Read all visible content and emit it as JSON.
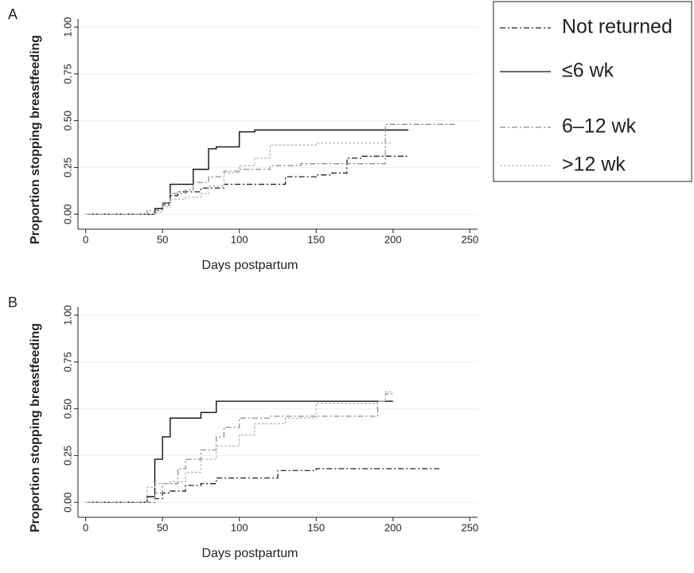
{
  "chart_data": [
    {
      "type": "line",
      "step": true,
      "panel_label": "A",
      "x_label": "Days postpartum",
      "y_label": "Proportion stopping breastfeeding",
      "xlim": [
        -5,
        255
      ],
      "ylim": [
        -0.08,
        1.03
      ],
      "xticks": [
        0,
        50,
        100,
        150,
        200,
        250
      ],
      "yticks": [
        {
          "value": 0,
          "label": "0.00"
        },
        {
          "value": 0.25,
          "label": "0.25"
        },
        {
          "value": 0.5,
          "label": "0.50"
        },
        {
          "value": 0.75,
          "label": "0.75"
        },
        {
          "value": 1,
          "label": "1.00"
        }
      ],
      "grid": true,
      "x": [
        0,
        40,
        45,
        50,
        55,
        60,
        65,
        70,
        75,
        80,
        85,
        90,
        100,
        110,
        120,
        130,
        140,
        150,
        160,
        170,
        180,
        195,
        200,
        210,
        240
      ],
      "series": [
        {
          "name": "Not returned",
          "color": "#222222",
          "dash": "dashdot",
          "values": [
            0,
            0,
            0.02,
            0.05,
            0.1,
            0.12,
            0.12,
            0.12,
            0.14,
            0.14,
            0.14,
            0.16,
            0.16,
            0.16,
            0.16,
            0.2,
            0.2,
            0.21,
            0.22,
            0.3,
            0.31,
            0.31,
            0.31,
            0.31,
            null
          ]
        },
        {
          "name": "≤6 wk",
          "color": "#111111",
          "dash": "solid",
          "values": [
            0,
            0,
            0.03,
            0.06,
            0.16,
            0.16,
            0.16,
            0.24,
            0.24,
            0.35,
            0.36,
            0.36,
            0.44,
            0.45,
            0.45,
            0.45,
            0.45,
            0.45,
            0.45,
            0.45,
            0.45,
            0.45,
            0.45,
            0.45,
            null
          ]
        },
        {
          "name": "6–12 wk",
          "color": "#8c8c8c",
          "dash": "dashdot",
          "values": [
            0,
            0.02,
            0.02,
            0.06,
            0.11,
            0.11,
            0.13,
            0.17,
            0.17,
            0.2,
            0.2,
            0.23,
            0.24,
            0.24,
            0.26,
            0.26,
            0.27,
            0.27,
            0.27,
            0.27,
            0.27,
            0.48,
            0.48,
            0.48,
            0.48
          ]
        },
        {
          "name": ">12 wk",
          "color": "#b8b8b8",
          "dash": "dotted",
          "values": [
            0,
            0,
            0.01,
            0.04,
            0.08,
            0.08,
            0.09,
            0.09,
            0.11,
            0.15,
            0.15,
            0.22,
            0.26,
            0.3,
            0.37,
            0.37,
            0.37,
            0.38,
            0.38,
            0.38,
            0.38,
            0.38,
            0.38,
            null,
            null
          ]
        }
      ]
    },
    {
      "type": "line",
      "step": true,
      "panel_label": "B",
      "x_label": "Days postpartum",
      "y_label": "Proportion stopping breastfeeding",
      "xlim": [
        -5,
        255
      ],
      "ylim": [
        -0.08,
        1.03
      ],
      "xticks": [
        0,
        50,
        100,
        150,
        200,
        250
      ],
      "yticks": [
        {
          "value": 0,
          "label": "0.00"
        },
        {
          "value": 0.25,
          "label": "0.25"
        },
        {
          "value": 0.5,
          "label": "0.50"
        },
        {
          "value": 0.75,
          "label": "0.75"
        },
        {
          "value": 1,
          "label": "1.00"
        }
      ],
      "grid": true,
      "x": [
        0,
        40,
        45,
        50,
        55,
        60,
        65,
        75,
        85,
        90,
        100,
        110,
        120,
        125,
        130,
        150,
        180,
        190,
        195,
        200,
        230
      ],
      "series": [
        {
          "color": "#222222",
          "dash": "dashdot",
          "values": [
            0,
            0,
            0.02,
            0.05,
            0.06,
            0.06,
            0.09,
            0.1,
            0.13,
            0.13,
            0.13,
            0.13,
            0.13,
            0.17,
            0.17,
            0.18,
            0.18,
            0.18,
            0.18,
            0.18,
            0.18
          ]
        },
        {
          "color": "#111111",
          "dash": "solid",
          "values": [
            0,
            0.03,
            0.23,
            0.35,
            0.45,
            0.45,
            0.45,
            0.48,
            0.54,
            0.54,
            0.54,
            0.54,
            0.54,
            0.54,
            0.54,
            0.54,
            0.54,
            0.54,
            0.54,
            0.54,
            null
          ]
        },
        {
          "color": "#8c8c8c",
          "dash": "dashdot",
          "values": [
            0,
            0,
            0.05,
            0.1,
            0.1,
            0.18,
            0.23,
            0.28,
            0.35,
            0.4,
            0.45,
            0.45,
            0.46,
            0.46,
            0.46,
            0.46,
            0.46,
            0.54,
            0.58,
            0.58,
            null
          ]
        },
        {
          "color": "#b8b8b8",
          "dash": "dotted",
          "values": [
            0,
            0.08,
            0.1,
            0.1,
            0.11,
            0.11,
            0.16,
            0.23,
            0.3,
            0.3,
            0.36,
            0.42,
            0.42,
            0.42,
            0.45,
            0.53,
            0.53,
            0.54,
            0.59,
            0.59,
            null
          ]
        }
      ]
    }
  ]
}
